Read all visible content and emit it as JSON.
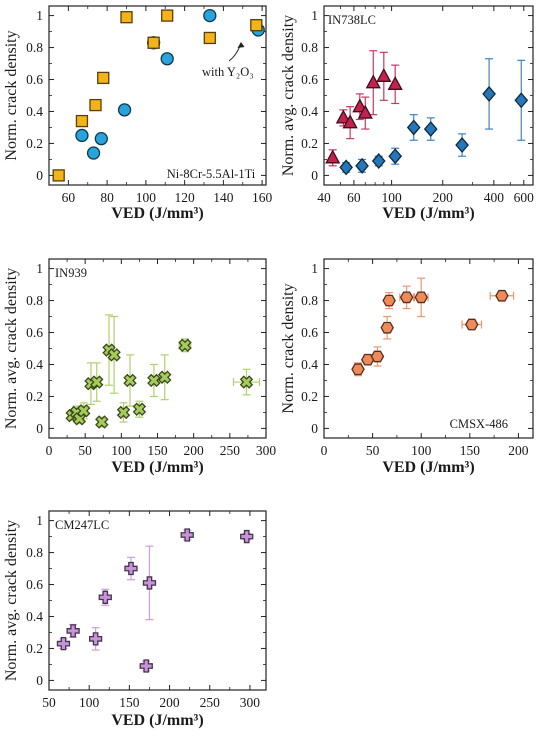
{
  "chart_data": [
    {
      "type": "scatter",
      "title": "",
      "xlabel": "VED (J/mm³)",
      "ylabel": "Norm. crack density",
      "xscale": "linear",
      "xlim": [
        50,
        162
      ],
      "ylim": [
        -0.06,
        1.06
      ],
      "xticks": [
        60,
        80,
        100,
        120,
        140,
        160
      ],
      "xticklabels": [
        "60",
        "80",
        "100",
        "120",
        "140",
        "160"
      ],
      "yticks": [
        0,
        0.2,
        0.4,
        0.6,
        0.8,
        1
      ],
      "yticklabels": [
        "0",
        "0.2",
        "0.4",
        "0.6",
        "0.8",
        "1"
      ],
      "grid": false,
      "annotations": [
        {
          "text": "Ni-8Cr-5.5Al-1Ti",
          "position": "bottom-right"
        },
        {
          "text": "with Y₂O₃",
          "position": "right",
          "arrow_to_series": "with Y₂O₃"
        }
      ],
      "series": [
        {
          "marker": "circle",
          "color": "#29a3dc",
          "points": [
            {
              "x": 67,
              "y": 0.25
            },
            {
              "x": 73,
              "y": 0.14
            },
            {
              "x": 77,
              "y": 0.23
            },
            {
              "x": 89,
              "y": 0.41
            },
            {
              "x": 104,
              "y": 0.83
            },
            {
              "x": 111,
              "y": 0.73
            },
            {
              "x": 133,
              "y": 1.0
            },
            {
              "x": 158,
              "y": 0.91
            }
          ]
        },
        {
          "name": "with Y₂O₃",
          "marker": "square",
          "color": "#f5b31a",
          "points": [
            {
              "x": 55,
              "y": 0.0
            },
            {
              "x": 67,
              "y": 0.34
            },
            {
              "x": 74,
              "y": 0.44
            },
            {
              "x": 78,
              "y": 0.61
            },
            {
              "x": 90,
              "y": 0.99
            },
            {
              "x": 104,
              "y": 0.83
            },
            {
              "x": 111,
              "y": 1.0
            },
            {
              "x": 133,
              "y": 0.86
            },
            {
              "x": 157,
              "y": 0.94
            }
          ]
        }
      ]
    },
    {
      "type": "scatter",
      "title": "",
      "xlabel": "VED (J/mm³)",
      "ylabel": "Norm. avg. crack density",
      "xscale": "log",
      "xlim": [
        40,
        680
      ],
      "ylim": [
        -0.06,
        1.06
      ],
      "xticks": [
        40,
        60,
        100,
        200,
        400,
        600
      ],
      "xticklabels": [
        "40",
        "60",
        "100",
        "200",
        "400",
        "600"
      ],
      "yticks": [
        0,
        0.2,
        0.4,
        0.6,
        0.8,
        1
      ],
      "yticklabels": [
        "0",
        "0.2",
        "0.4",
        "0.6",
        "0.8",
        "1"
      ],
      "grid": false,
      "annotations": [
        {
          "text": "IN738LC",
          "position": "top-left"
        }
      ],
      "series": [
        {
          "marker": "triangle",
          "color": "#c0234e",
          "points": [
            {
              "x": 45,
              "y": 0.11,
              "yerr": 0.05
            },
            {
              "x": 52,
              "y": 0.36,
              "yerr": 0.05
            },
            {
              "x": 57,
              "y": 0.33,
              "yerr": 0.1
            },
            {
              "x": 65,
              "y": 0.43,
              "yerr": 0.08
            },
            {
              "x": 70,
              "y": 0.39,
              "yerr": 0.1
            },
            {
              "x": 78,
              "y": 0.58,
              "yerr": 0.2
            },
            {
              "x": 90,
              "y": 0.62,
              "yerr": 0.15
            },
            {
              "x": 105,
              "y": 0.57,
              "yerr": 0.12
            }
          ]
        },
        {
          "marker": "diamond",
          "color": "#2577b8",
          "points": [
            {
              "x": 54,
              "y": 0.05,
              "yerr": 0.03
            },
            {
              "x": 67,
              "y": 0.06,
              "yerr": 0.04
            },
            {
              "x": 84,
              "y": 0.09,
              "yerr": 0.03
            },
            {
              "x": 105,
              "y": 0.12,
              "yerr": 0.05
            },
            {
              "x": 135,
              "y": 0.3,
              "yerr": 0.08
            },
            {
              "x": 170,
              "y": 0.29,
              "yerr": 0.07
            },
            {
              "x": 260,
              "y": 0.19,
              "yerr": 0.07
            },
            {
              "x": 375,
              "y": 0.51,
              "yerr": 0.22
            },
            {
              "x": 580,
              "y": 0.47,
              "yerr": 0.25
            }
          ]
        }
      ]
    },
    {
      "type": "scatter",
      "title": "",
      "xlabel": "VED (J/mm³)",
      "ylabel": "Norm. avg. crack density",
      "xscale": "linear",
      "xlim": [
        0,
        300
      ],
      "ylim": [
        -0.06,
        1.06
      ],
      "xticks": [
        0,
        50,
        100,
        150,
        200,
        250,
        300
      ],
      "xticklabels": [
        "0",
        "50",
        "100",
        "150",
        "200",
        "250",
        "300"
      ],
      "yticks": [
        0,
        0.2,
        0.4,
        0.6,
        0.8,
        1
      ],
      "yticklabels": [
        "0",
        "0.2",
        "0.4",
        "0.6",
        "0.8",
        "1"
      ],
      "grid": false,
      "annotations": [
        {
          "text": "IN939",
          "position": "top-left"
        }
      ],
      "series": [
        {
          "marker": "x-filled",
          "color": "#a6cc5a",
          "points": [
            {
              "x": 32,
              "y": 0.08,
              "yerr": 0.03
            },
            {
              "x": 38,
              "y": 0.1,
              "yerr": 0.04
            },
            {
              "x": 42,
              "y": 0.06,
              "yerr": 0.03
            },
            {
              "x": 48,
              "y": 0.11,
              "yerr": 0.05
            },
            {
              "x": 58,
              "y": 0.28,
              "yerr": 0.13
            },
            {
              "x": 66,
              "y": 0.29,
              "yerr": 0.12
            },
            {
              "x": 73,
              "y": 0.04,
              "yerr": 0.03
            },
            {
              "x": 83,
              "y": 0.49,
              "yerr": 0.22
            },
            {
              "x": 90,
              "y": 0.46,
              "yerr": 0.24
            },
            {
              "x": 103,
              "y": 0.1,
              "yerr": 0.06
            },
            {
              "x": 112,
              "y": 0.3,
              "yerr": 0.16
            },
            {
              "x": 125,
              "y": 0.12,
              "yerr": 0.05
            },
            {
              "x": 145,
              "y": 0.3,
              "yerr": 0.1
            },
            {
              "x": 160,
              "y": 0.32,
              "yerr": 0.14
            },
            {
              "x": 188,
              "y": 0.52,
              "yerr": 0.04,
              "xerr": 8
            },
            {
              "x": 273,
              "y": 0.29,
              "yerr": 0.08,
              "xerr": 18
            }
          ]
        }
      ]
    },
    {
      "type": "scatter",
      "title": "",
      "xlabel": "VED (J/mm³)",
      "ylabel": "Norm. crack density",
      "xscale": "linear",
      "xlim": [
        0,
        215
      ],
      "ylim": [
        -0.06,
        1.06
      ],
      "xticks": [
        0,
        50,
        100,
        150,
        200
      ],
      "xticklabels": [
        "0",
        "50",
        "100",
        "150",
        "200"
      ],
      "yticks": [
        0,
        0.2,
        0.4,
        0.6,
        0.8,
        1
      ],
      "yticklabels": [
        "0",
        "0.2",
        "0.4",
        "0.6",
        "0.8",
        "1"
      ],
      "grid": false,
      "annotations": [
        {
          "text": "CMSX-486",
          "position": "bottom-right"
        }
      ],
      "series": [
        {
          "marker": "hexagon",
          "color": "#ef8a5a",
          "points": [
            {
              "x": 35,
              "y": 0.37,
              "yerr": 0.04
            },
            {
              "x": 45,
              "y": 0.43,
              "yerr": 0.03
            },
            {
              "x": 55,
              "y": 0.45,
              "yerr": 0.06
            },
            {
              "x": 65,
              "y": 0.63,
              "yerr": 0.07
            },
            {
              "x": 67,
              "y": 0.8,
              "yerr": 0.05
            },
            {
              "x": 85,
              "y": 0.82,
              "yerr": 0.07,
              "xerr": 7
            },
            {
              "x": 100,
              "y": 0.82,
              "yerr": 0.12,
              "xerr": 7
            },
            {
              "x": 152,
              "y": 0.65,
              "yerr": 0.02,
              "xerr": 10
            },
            {
              "x": 183,
              "y": 0.83,
              "yerr": 0.02,
              "xerr": 12
            }
          ]
        }
      ]
    },
    {
      "type": "scatter",
      "title": "",
      "xlabel": "VED (J/mm³)",
      "ylabel": "Norm. avg. crack density",
      "xscale": "linear",
      "xlim": [
        50,
        320
      ],
      "ylim": [
        -0.06,
        1.06
      ],
      "xticks": [
        50,
        100,
        150,
        200,
        250,
        300
      ],
      "xticklabels": [
        "50",
        "100",
        "150",
        "200",
        "250",
        "300"
      ],
      "yticks": [
        0,
        0.2,
        0.4,
        0.6,
        0.8,
        1
      ],
      "yticklabels": [
        "0",
        "0.2",
        "0.4",
        "0.6",
        "0.8",
        "1"
      ],
      "grid": false,
      "annotations": [
        {
          "text": "CM247LC",
          "position": "top-left"
        }
      ],
      "series": [
        {
          "marker": "plus",
          "color": "#c794d9",
          "points": [
            {
              "x": 68,
              "y": 0.23,
              "yerr": 0.03
            },
            {
              "x": 80,
              "y": 0.31,
              "yerr": 0.04
            },
            {
              "x": 108,
              "y": 0.26,
              "yerr": 0.07
            },
            {
              "x": 120,
              "y": 0.52,
              "yerr": 0.05
            },
            {
              "x": 152,
              "y": 0.7,
              "yerr": 0.07
            },
            {
              "x": 171,
              "y": 0.09,
              "yerr": 0.03
            },
            {
              "x": 175,
              "y": 0.61,
              "yerr": 0.23
            },
            {
              "x": 222,
              "y": 0.91,
              "yerr": 0.03
            },
            {
              "x": 296,
              "y": 0.9,
              "yerr": 0.02
            }
          ]
        }
      ]
    }
  ]
}
